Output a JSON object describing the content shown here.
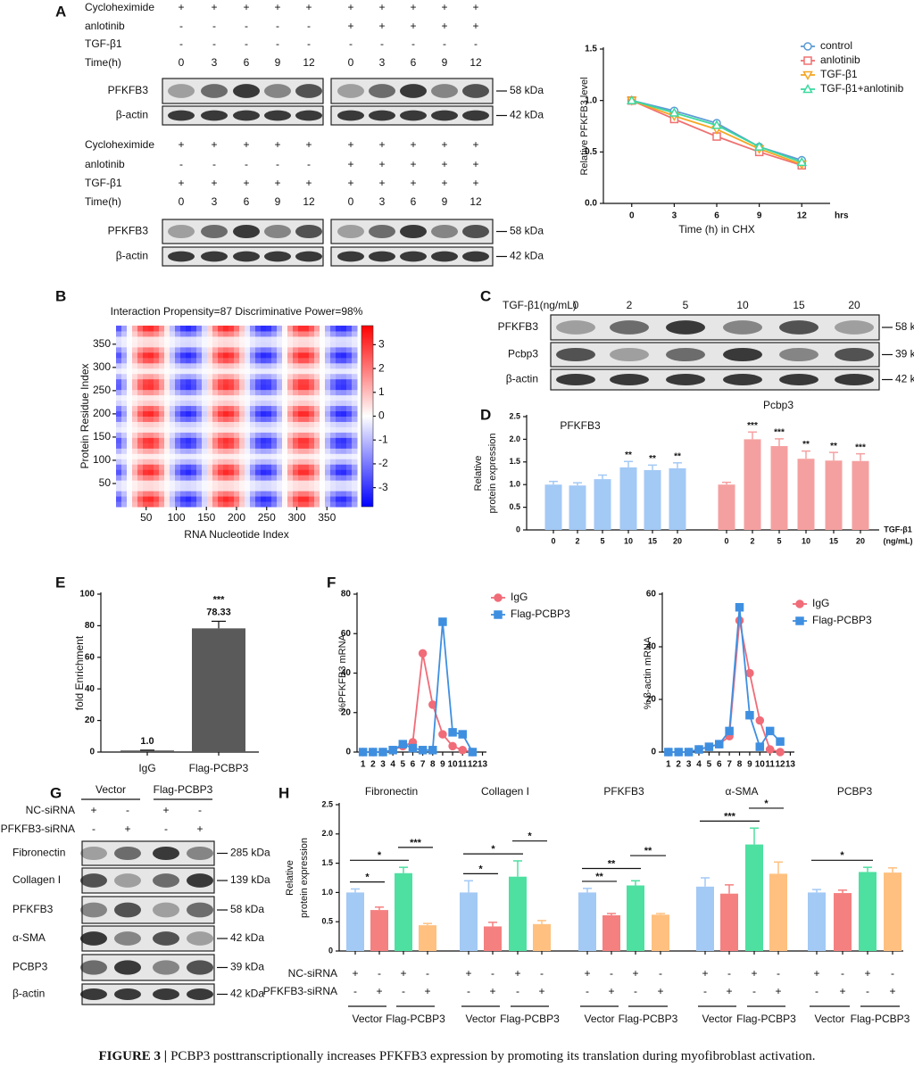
{
  "panel_labels": [
    "A",
    "B",
    "C",
    "D",
    "E",
    "F",
    "G",
    "H"
  ],
  "blot_a": [
    {
      "conditions": [
        {
          "name": "Cycloheximide",
          "signs": [
            "+",
            "+",
            "+",
            "+",
            "+",
            "+",
            "+",
            "+",
            "+",
            "+"
          ]
        },
        {
          "name": "anlotinib",
          "signs": [
            "-",
            "-",
            "-",
            "-",
            "-",
            "+",
            "+",
            "+",
            "+",
            "+"
          ]
        },
        {
          "name": "TGF-β1",
          "signs": [
            "-",
            "-",
            "-",
            "-",
            "-",
            "-",
            "-",
            "-",
            "-",
            "-"
          ]
        },
        {
          "name": "Time(h)",
          "signs": [
            "0",
            "3",
            "6",
            "9",
            "12",
            "0",
            "3",
            "6",
            "9",
            "12"
          ]
        }
      ],
      "bands": [
        {
          "name": "PFKFB3",
          "size": "58 kDa"
        },
        {
          "name": "β-actin",
          "size": "42 kDa"
        }
      ]
    },
    {
      "conditions": [
        {
          "name": "Cycloheximide",
          "signs": [
            "+",
            "+",
            "+",
            "+",
            "+",
            "+",
            "+",
            "+",
            "+",
            "+"
          ]
        },
        {
          "name": "anlotinib",
          "signs": [
            "-",
            "-",
            "-",
            "-",
            "-",
            "+",
            "+",
            "+",
            "+",
            "+"
          ]
        },
        {
          "name": "TGF-β1",
          "signs": [
            "+",
            "+",
            "+",
            "+",
            "+",
            "+",
            "+",
            "+",
            "+",
            "+"
          ]
        },
        {
          "name": "Time(h)",
          "signs": [
            "0",
            "3",
            "6",
            "9",
            "12",
            "0",
            "3",
            "6",
            "9",
            "12"
          ]
        }
      ],
      "bands": [
        {
          "name": "PFKFB3",
          "size": "58 kDa"
        },
        {
          "name": "β-actin",
          "size": "42 kDa"
        }
      ]
    }
  ],
  "blot_c": {
    "conditions": [
      {
        "name": "TGF-β1(ng/mL)",
        "signs": [
          "0",
          "2",
          "5",
          "10",
          "15",
          "20"
        ]
      }
    ],
    "bands": [
      {
        "name": "PFKFB3",
        "size": "58 kDa"
      },
      {
        "name": "Pcbp3",
        "size": "39 kDa"
      },
      {
        "name": "β-actin",
        "size": "42 kDa"
      }
    ]
  },
  "blot_g": {
    "groups": [
      "Vector",
      "Flag-PCBP3"
    ],
    "conditions": [
      {
        "name": "NC-siRNA",
        "signs": [
          "+",
          "-",
          "+",
          "-"
        ]
      },
      {
        "name": "PFKFB3-siRNA",
        "signs": [
          "-",
          "+",
          "-",
          "+"
        ]
      }
    ],
    "bands": [
      {
        "name": "Fibronectin",
        "size": "285 kDa"
      },
      {
        "name": "Collagen I",
        "size": "139 kDa"
      },
      {
        "name": "PFKFB3",
        "size": "58 kDa"
      },
      {
        "name": "α-SMA",
        "size": "42 kDa"
      },
      {
        "name": "PCBP3",
        "size": "39 kDa"
      },
      {
        "name": "β-actin",
        "size": "42 kDa"
      }
    ]
  },
  "chart_data": [
    {
      "type": "line",
      "ylabel": "Relative PFKFB3 level",
      "xlabel": "Time (h) in CHX",
      "x_unit": "hrs",
      "x": [
        0,
        3,
        6,
        9,
        12
      ],
      "xlim": [
        -2,
        14
      ],
      "xticks": [
        0,
        3,
        6,
        9,
        12
      ],
      "ylim": [
        0,
        1.5
      ],
      "yticks": [
        {
          "value": 0,
          "label": "0.0"
        },
        {
          "value": 0.5,
          "label": "0.5"
        },
        {
          "value": 1,
          "label": "1.0"
        },
        {
          "value": 1.5,
          "label": "1.5"
        }
      ],
      "legend": "upper right",
      "hollow_markers": true,
      "series": [
        {
          "name": "control",
          "color": "#5b9bd5",
          "marker": "circle",
          "values": [
            1.0,
            0.9,
            0.78,
            0.55,
            0.42
          ]
        },
        {
          "name": "anlotinib",
          "color": "#f07070",
          "marker": "square",
          "values": [
            1.0,
            0.82,
            0.65,
            0.5,
            0.37
          ]
        },
        {
          "name": "TGF-β1",
          "color": "#f5a623",
          "marker": "triangle-down",
          "values": [
            1.0,
            0.85,
            0.72,
            0.53,
            0.38
          ]
        },
        {
          "name": "TGF-β1+anlotinib",
          "color": "#3dd9a0",
          "marker": "triangle-up",
          "values": [
            1.0,
            0.88,
            0.76,
            0.55,
            0.4
          ]
        }
      ]
    },
    {
      "type": "heatmap",
      "title": "Interaction Propensity=87 Discriminative Power=98%",
      "xlabel": "RNA Nucleotide Index",
      "ylabel": "Protein Residue Index",
      "xlim": [
        0,
        400
      ],
      "xticks": [
        50,
        100,
        150,
        200,
        250,
        300,
        350
      ],
      "ylim": [
        0,
        390
      ],
      "yticks": [
        50,
        100,
        150,
        200,
        250,
        300,
        350
      ],
      "clim": [
        -3.8,
        3.8
      ],
      "cticks": [
        -3,
        -2,
        -1,
        0,
        1,
        2,
        3
      ],
      "colors": [
        "#0000ff",
        "#ffffff",
        "#ff0000"
      ]
    },
    {
      "type": "grouped_bar",
      "ylabel": [
        "Relative",
        "protein expression"
      ],
      "xlabel": [
        "TGF-β1",
        "(ng/mL)"
      ],
      "categories": [
        "0",
        "2",
        "5",
        "10",
        "15",
        "20"
      ],
      "ylim": [
        0,
        2.5
      ],
      "yticks": [
        0,
        0.5,
        {
          "value": 1,
          "label": "1.0"
        },
        1.5,
        {
          "value": 2,
          "label": "2.0"
        },
        2.5
      ],
      "groups": [
        {
          "name": "PFKFB3",
          "color": "#a3c9f5",
          "values": [
            1.0,
            0.98,
            1.12,
            1.38,
            1.32,
            1.36
          ],
          "errors": [
            0.07,
            0.06,
            0.09,
            0.13,
            0.11,
            0.12
          ],
          "annotations": [
            null,
            null,
            null,
            "**",
            "**",
            "**"
          ]
        },
        {
          "name": "Pcbp3",
          "color": "#f5a0a0",
          "values": [
            1.0,
            2.0,
            1.85,
            1.57,
            1.53,
            1.52
          ],
          "errors": [
            0.05,
            0.16,
            0.16,
            0.17,
            0.18,
            0.16
          ],
          "annotations": [
            null,
            "***",
            "***",
            "**",
            "**",
            "***"
          ]
        }
      ]
    },
    {
      "type": "bar",
      "ylabel": "fold Enrichment",
      "categories": [
        "IgG",
        "Flag-PCBP3"
      ],
      "values": [
        1.0,
        78.33
      ],
      "value_labels": [
        "1.0",
        "78.33"
      ],
      "errors": [
        0.2,
        4.5
      ],
      "annotations": [
        null,
        "***"
      ],
      "color": "#5a5a5a",
      "ylim": [
        0,
        100
      ],
      "yticks": [
        0,
        20,
        40,
        60,
        80,
        100
      ]
    },
    {
      "type": "line",
      "ylabel": "%PFKFB3  mRNA",
      "legend": "upper right",
      "x": [
        1,
        2,
        3,
        4,
        5,
        6,
        7,
        8,
        9,
        10,
        11,
        12
      ],
      "xlim": [
        0.4,
        13.4
      ],
      "xticks": [
        1,
        2,
        3,
        4,
        5,
        6,
        7,
        8,
        9,
        10,
        11,
        12,
        13
      ],
      "ylim": [
        0,
        80
      ],
      "yticks": [
        0,
        20,
        40,
        60,
        80
      ],
      "series": [
        {
          "name": "IgG",
          "color": "#f06c78",
          "marker": "circle",
          "values": [
            0,
            0,
            0,
            1,
            3,
            5,
            50,
            24,
            9,
            3,
            1,
            0
          ]
        },
        {
          "name": "Flag-PCBP3",
          "color": "#3f8fe0",
          "marker": "square",
          "values": [
            0,
            0,
            0,
            1,
            4,
            2,
            1,
            1,
            66,
            10,
            9,
            0
          ]
        }
      ]
    },
    {
      "type": "line",
      "ylabel": "% β-actin mRNA",
      "legend": "upper right",
      "x": [
        1,
        2,
        3,
        4,
        5,
        6,
        7,
        8,
        9,
        10,
        11,
        12
      ],
      "xlim": [
        0.4,
        13.4
      ],
      "xticks": [
        1,
        2,
        3,
        4,
        5,
        6,
        7,
        8,
        9,
        10,
        11,
        12,
        13
      ],
      "ylim": [
        0,
        60
      ],
      "yticks": [
        0,
        20,
        40,
        60
      ],
      "series": [
        {
          "name": "IgG",
          "color": "#f06c78",
          "marker": "circle",
          "values": [
            0,
            0,
            0,
            1,
            2,
            3,
            6,
            50,
            30,
            12,
            1,
            0
          ]
        },
        {
          "name": "Flag-PCBP3",
          "color": "#3f8fe0",
          "marker": "square",
          "values": [
            0,
            0,
            0,
            1,
            2,
            3,
            8,
            55,
            14,
            2,
            8,
            4
          ]
        }
      ]
    },
    {
      "type": "grouped_bar",
      "ylabel": [
        "Relative",
        "protein expression"
      ],
      "ylim": [
        0,
        2.5
      ],
      "yticks": [
        0,
        0.5,
        {
          "value": 1,
          "label": "1.0"
        },
        1.5,
        {
          "value": 2,
          "label": "2.0"
        },
        2.5
      ],
      "colors": [
        "#a3c9f5",
        "#f58080",
        "#4de0a0",
        "#ffc080"
      ],
      "conditions": [
        {
          "name": "NC-siRNA",
          "signs": [
            "+",
            "-",
            "+",
            "-"
          ]
        },
        {
          "name": "PFKFB3-siRNA",
          "signs": [
            "-",
            "+",
            "-",
            "+"
          ]
        }
      ],
      "condition_groups": [
        "Vector",
        "Flag-PCBP3"
      ],
      "groups": [
        {
          "name": "Fibronectin",
          "values": [
            1.0,
            0.7,
            1.33,
            0.44
          ],
          "errors": [
            0.06,
            0.05,
            0.1,
            0.03
          ],
          "brackets": [
            {
              "from": 0,
              "to": 1,
              "label": "*"
            },
            {
              "from": 0,
              "to": 2,
              "label": "*"
            },
            {
              "from": 2,
              "to": 3,
              "label": "***"
            }
          ]
        },
        {
          "name": "Collagen I",
          "values": [
            1.0,
            0.42,
            1.27,
            0.46
          ],
          "errors": [
            0.2,
            0.07,
            0.27,
            0.06
          ],
          "brackets": [
            {
              "from": 0,
              "to": 1,
              "label": "*"
            },
            {
              "from": 0,
              "to": 2,
              "label": "*"
            },
            {
              "from": 2,
              "to": 3,
              "label": "*"
            }
          ]
        },
        {
          "name": "PFKFB3",
          "values": [
            1.0,
            0.61,
            1.12,
            0.62
          ],
          "errors": [
            0.07,
            0.03,
            0.08,
            0.02
          ],
          "brackets": [
            {
              "from": 0,
              "to": 1,
              "label": "**"
            },
            {
              "from": 0,
              "to": 2,
              "label": "**"
            },
            {
              "from": 2,
              "to": 3,
              "label": "**"
            }
          ]
        },
        {
          "name": "α-SMA",
          "values": [
            1.1,
            0.98,
            1.82,
            1.32
          ],
          "errors": [
            0.15,
            0.15,
            0.28,
            0.2
          ],
          "brackets": [
            {
              "from": 0,
              "to": 2,
              "label": "***"
            },
            {
              "from": 2,
              "to": 3,
              "label": "*"
            }
          ]
        },
        {
          "name": "PCBP3",
          "values": [
            1.0,
            0.99,
            1.35,
            1.34
          ],
          "errors": [
            0.05,
            0.05,
            0.08,
            0.08
          ],
          "brackets": [
            {
              "from": 0,
              "to": 2,
              "label": "*"
            }
          ]
        }
      ]
    }
  ],
  "caption": {
    "label": "FIGURE 3 |",
    "text": "PCBP3 posttranscriptionally increases PFKFB3 expression by promoting its translation during myofibroblast activation."
  }
}
